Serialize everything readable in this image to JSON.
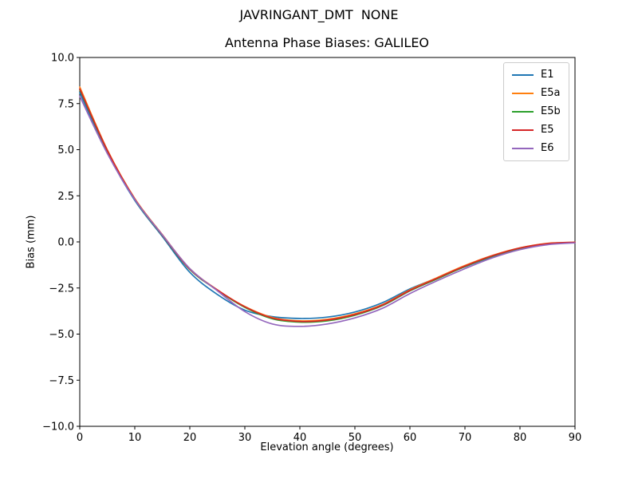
{
  "figure": {
    "suptitle": "JAVRINGANT_DMT  NONE",
    "axes_title": "Antenna Phase Biases: GALILEO"
  },
  "chart_data": {
    "type": "line",
    "suptitle": "JAVRINGANT_DMT  NONE",
    "title": "Antenna Phase Biases: GALILEO",
    "xlabel": "Elevation angle (degrees)",
    "ylabel": "Bias (mm)",
    "xlim": [
      0,
      90
    ],
    "ylim": [
      -10.0,
      10.0
    ],
    "xticks": [
      0,
      10,
      20,
      30,
      40,
      50,
      60,
      70,
      80,
      90
    ],
    "yticks": [
      -10.0,
      -7.5,
      -5.0,
      -2.5,
      0.0,
      2.5,
      5.0,
      7.5,
      10.0
    ],
    "ytick_labels": [
      "−10.0",
      "−7.5",
      "−5.0",
      "−2.5",
      "0.0",
      "2.5",
      "5.0",
      "7.5",
      "10.0"
    ],
    "grid": false,
    "legend_position": "upper right",
    "x": [
      0,
      5,
      10,
      15,
      20,
      25,
      30,
      35,
      40,
      45,
      50,
      55,
      60,
      65,
      70,
      75,
      80,
      85,
      90
    ],
    "series": [
      {
        "name": "E1",
        "color": "#1f77b4",
        "values": [
          8.1,
          4.85,
          2.25,
          0.3,
          -1.65,
          -2.85,
          -3.7,
          -4.05,
          -4.15,
          -4.08,
          -3.8,
          -3.3,
          -2.55,
          -1.95,
          -1.35,
          -0.8,
          -0.35,
          -0.1,
          -0.03
        ]
      },
      {
        "name": "E5a",
        "color": "#ff7f0e",
        "values": [
          8.4,
          5.0,
          2.35,
          0.4,
          -1.45,
          -2.6,
          -3.5,
          -4.1,
          -4.28,
          -4.2,
          -3.9,
          -3.4,
          -2.6,
          -1.93,
          -1.28,
          -0.73,
          -0.32,
          -0.08,
          -0.02
        ]
      },
      {
        "name": "E5b",
        "color": "#2ca02c",
        "values": [
          8.25,
          4.95,
          2.3,
          0.35,
          -1.5,
          -2.62,
          -3.55,
          -4.17,
          -4.35,
          -4.28,
          -3.98,
          -3.46,
          -2.66,
          -2.0,
          -1.34,
          -0.78,
          -0.35,
          -0.1,
          -0.03
        ]
      },
      {
        "name": "E5",
        "color": "#d62728",
        "values": [
          8.3,
          4.97,
          2.33,
          0.37,
          -1.48,
          -2.6,
          -3.52,
          -4.13,
          -4.31,
          -4.24,
          -3.94,
          -3.43,
          -2.63,
          -1.96,
          -1.31,
          -0.75,
          -0.33,
          -0.09,
          -0.02
        ]
      },
      {
        "name": "E6",
        "color": "#9467bd",
        "values": [
          7.9,
          4.8,
          2.3,
          0.38,
          -1.45,
          -2.65,
          -3.78,
          -4.45,
          -4.58,
          -4.45,
          -4.12,
          -3.6,
          -2.8,
          -2.1,
          -1.45,
          -0.86,
          -0.42,
          -0.15,
          -0.05
        ]
      }
    ]
  }
}
